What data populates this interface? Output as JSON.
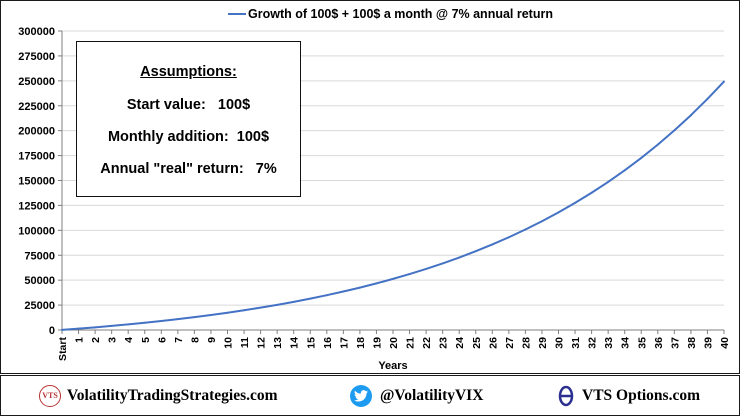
{
  "chart_data": {
    "type": "line",
    "title": "",
    "legend": {
      "label": "Growth of 100$ + 100$ a month @ 7% annual return",
      "placement": "top-center"
    },
    "xlabel": "Years",
    "ylabel": "",
    "x_tick_labels": [
      "Start",
      "1",
      "2",
      "3",
      "4",
      "5",
      "6",
      "7",
      "8",
      "9",
      "10",
      "11",
      "12",
      "13",
      "14",
      "15",
      "16",
      "17",
      "18",
      "19",
      "20",
      "21",
      "22",
      "23",
      "24",
      "25",
      "26",
      "27",
      "28",
      "29",
      "30",
      "31",
      "32",
      "33",
      "34",
      "35",
      "36",
      "37",
      "38",
      "39",
      "40"
    ],
    "y_ticks": [
      0,
      25000,
      50000,
      75000,
      100000,
      125000,
      150000,
      175000,
      200000,
      225000,
      250000,
      275000,
      300000
    ],
    "ylim": [
      0,
      300000
    ],
    "xlim": [
      0,
      40
    ],
    "grid": "horizontal",
    "series": [
      {
        "name": "Growth of 100$ + 100$ a month @ 7% annual return",
        "color": "#4472c4",
        "x": [
          0,
          1,
          2,
          3,
          4,
          5,
          6,
          7,
          8,
          9,
          10,
          11,
          12,
          13,
          14,
          15,
          16,
          17,
          18,
          19,
          20,
          21,
          22,
          23,
          24,
          25,
          26,
          27,
          28,
          29,
          30,
          31,
          32,
          33,
          34,
          35,
          36,
          37,
          38,
          39,
          40
        ],
        "values": [
          100,
          1348,
          2684,
          4113,
          5642,
          7278,
          9029,
          10902,
          12907,
          15052,
          17347,
          19803,
          22431,
          25243,
          28251,
          31470,
          34915,
          38600,
          42543,
          46762,
          51277,
          56107,
          61276,
          66806,
          72724,
          79056,
          85831,
          93080,
          100837,
          109137,
          118018,
          127520,
          137688,
          148567,
          160208,
          172664,
          185992,
          200252,
          215511,
          231838,
          249307
        ]
      }
    ]
  },
  "assumptions": {
    "title": "Assumptions:",
    "start_value": "Start value:   100$",
    "monthly_addition": "Monthly addition:  100$",
    "annual_return": "Annual \"real\" return:   7%"
  },
  "footer": {
    "website": "VolatilityTradingStrategies.com",
    "twitter": "@VolatilityVIX",
    "options": "VTS Options.com",
    "logo_text": "VTS"
  }
}
